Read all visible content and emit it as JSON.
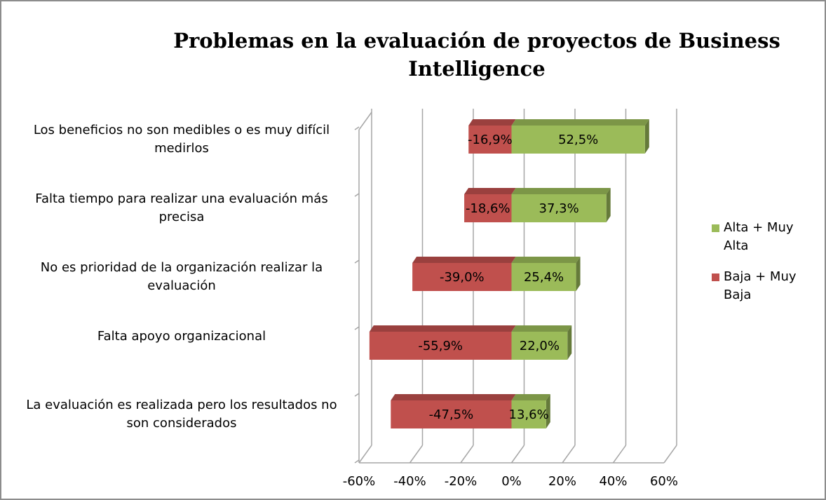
{
  "chart_data": {
    "type": "bar",
    "orientation": "horizontal",
    "title": "Problemas en la evaluación de proyectos de Business Intelligence",
    "categories": [
      "Los beneficios no son medibles o es muy difícil medirlos",
      "Falta tiempo para realizar una evaluación más precisa",
      "No es prioridad de la organización realizar la evaluación",
      "Falta apoyo organizacional",
      "La evaluación es realizada pero los resultados no son considerados"
    ],
    "series": [
      {
        "name": "Alta + Muy Alta",
        "color": "#9bbb59",
        "values": [
          52.5,
          37.3,
          25.4,
          22.0,
          13.6
        ],
        "value_labels": [
          "52,5%",
          "37,3%",
          "25,4%",
          "22,0%",
          "13,6%"
        ]
      },
      {
        "name": "Baja + Muy Baja",
        "color": "#c0504d",
        "values": [
          -16.9,
          -18.6,
          -39.0,
          -55.9,
          -47.5
        ],
        "value_labels": [
          "-16,9%",
          "-18,6%",
          "-39,0%",
          "-55,9%",
          "-47,5%"
        ]
      }
    ],
    "xlim": [
      -60,
      60
    ],
    "xticks": [
      {
        "value": -60,
        "label": "-60%"
      },
      {
        "value": -40,
        "label": "-40%"
      },
      {
        "value": -20,
        "label": "-20%"
      },
      {
        "value": 0,
        "label": "0%"
      },
      {
        "value": 20,
        "label": "20%"
      },
      {
        "value": 40,
        "label": "40%"
      },
      {
        "value": 60,
        "label": "60%"
      }
    ],
    "grid": true,
    "legend": "right"
  }
}
